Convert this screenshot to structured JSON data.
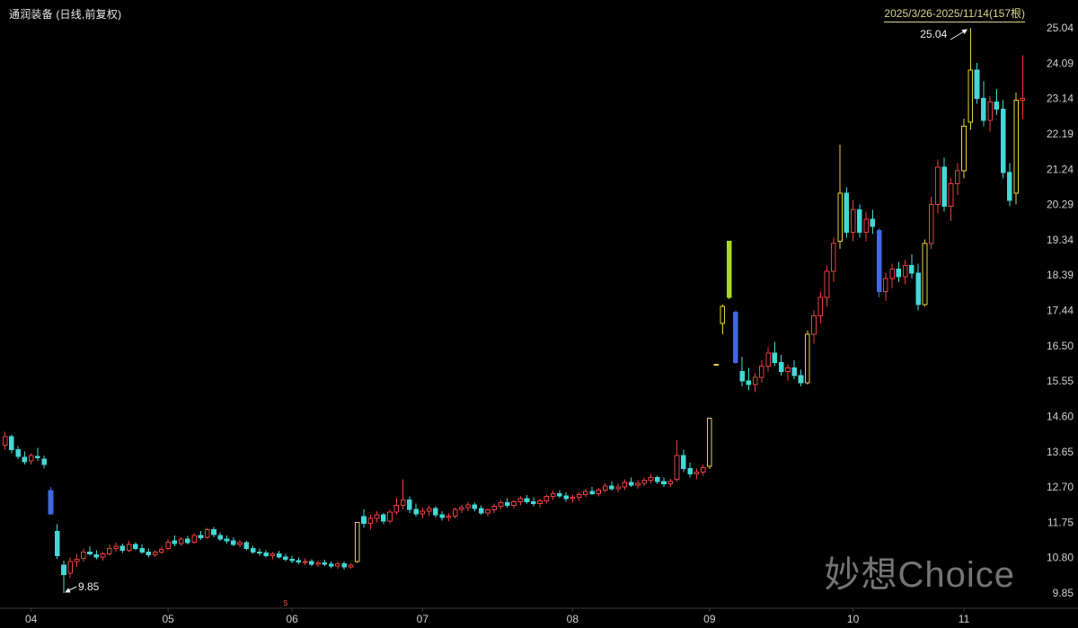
{
  "header": {
    "title": "通润装备 (日线,前复权)",
    "range_label": "2025/3/26-2025/11/14(157根)"
  },
  "watermark": "妙想Choice",
  "annotations": {
    "high_label": "25.04",
    "low_label": "9.85",
    "event_marker": {
      "label": "s",
      "date": "05/30"
    }
  },
  "colors": {
    "up": "#e8413f",
    "down": "#44d7d4",
    "strong_up": "#e7d23e",
    "strong_down": "#4169e1",
    "gap_down": "#a8d822",
    "axis_text": "#d0d0d0",
    "axis_line": "#3c3c3c",
    "annotation": "#efefef",
    "marker": "#e8413f"
  },
  "chart_data": {
    "type": "candlestick",
    "title": "通润装备",
    "period": "日线",
    "adjustment": "前复权",
    "date_range": "2025/3/26-2025/11/14",
    "bar_count": 157,
    "ylim": [
      9.85,
      25.04
    ],
    "y_ticks": [
      "25.04",
      "24.09",
      "23.14",
      "22.19",
      "21.24",
      "20.29",
      "19.34",
      "18.39",
      "17.44",
      "16.50",
      "15.55",
      "14.60",
      "13.65",
      "12.70",
      "11.75",
      "10.80",
      "9.85"
    ],
    "x_ticks": [
      "04",
      "05",
      "06",
      "07",
      "08",
      "09",
      "10",
      "11"
    ],
    "high_point": {
      "value": 25.04,
      "date": "11/04"
    },
    "low_point": {
      "value": 9.85,
      "date": "04/09"
    },
    "columns": [
      "date",
      "open",
      "high",
      "low",
      "close",
      "style"
    ],
    "styles": {
      "Y": "strong_up",
      "B": "strong_down",
      "G": "gap_down"
    },
    "candles": [
      [
        "03/26",
        13.82,
        14.18,
        13.7,
        14.05
      ],
      [
        "03/27",
        14.05,
        14.1,
        13.6,
        13.7
      ],
      [
        "03/28",
        13.7,
        13.8,
        13.45,
        13.52
      ],
      [
        "03/31",
        13.5,
        13.65,
        13.3,
        13.38
      ],
      [
        "04/01",
        13.4,
        13.6,
        13.3,
        13.55
      ],
      [
        "04/02",
        13.52,
        13.75,
        13.4,
        13.48
      ],
      [
        "04/03",
        13.45,
        13.55,
        13.2,
        13.3
      ],
      [
        "04/07",
        12.6,
        12.7,
        11.95,
        11.97,
        "B"
      ],
      [
        "04/08",
        11.5,
        11.7,
        10.77,
        10.85
      ],
      [
        "04/09",
        10.6,
        10.72,
        9.85,
        10.35
      ],
      [
        "04/10",
        10.38,
        10.8,
        10.25,
        10.7
      ],
      [
        "04/11",
        10.7,
        10.9,
        10.55,
        10.75
      ],
      [
        "04/14",
        10.78,
        11.05,
        10.7,
        10.95
      ],
      [
        "04/15",
        10.95,
        11.1,
        10.85,
        10.9
      ],
      [
        "04/16",
        10.88,
        11.0,
        10.75,
        10.82
      ],
      [
        "04/17",
        10.82,
        10.95,
        10.72,
        10.9
      ],
      [
        "04/18",
        10.9,
        11.15,
        10.85,
        11.05
      ],
      [
        "04/21",
        11.05,
        11.2,
        10.95,
        11.1
      ],
      [
        "04/22",
        11.1,
        11.18,
        10.92,
        11.0
      ],
      [
        "04/23",
        11.0,
        11.25,
        10.95,
        11.15
      ],
      [
        "04/24",
        11.15,
        11.22,
        11.0,
        11.05
      ],
      [
        "04/25",
        11.05,
        11.15,
        10.9,
        10.95
      ],
      [
        "04/28",
        10.95,
        11.05,
        10.8,
        10.88
      ],
      [
        "04/29",
        10.88,
        11.0,
        10.82,
        10.95
      ],
      [
        "04/30",
        10.95,
        11.1,
        10.9,
        11.02
      ],
      [
        "05/06",
        11.05,
        11.3,
        11.0,
        11.22
      ],
      [
        "05/07",
        11.25,
        11.4,
        11.1,
        11.18
      ],
      [
        "05/08",
        11.18,
        11.35,
        11.12,
        11.3
      ],
      [
        "05/09",
        11.3,
        11.38,
        11.15,
        11.2
      ],
      [
        "05/12",
        11.22,
        11.45,
        11.18,
        11.4
      ],
      [
        "05/13",
        11.4,
        11.52,
        11.28,
        11.33
      ],
      [
        "05/14",
        11.35,
        11.6,
        11.3,
        11.55
      ],
      [
        "05/15",
        11.55,
        11.62,
        11.35,
        11.42
      ],
      [
        "05/16",
        11.4,
        11.48,
        11.25,
        11.3
      ],
      [
        "05/19",
        11.3,
        11.4,
        11.18,
        11.25
      ],
      [
        "05/20",
        11.25,
        11.35,
        11.1,
        11.15
      ],
      [
        "05/21",
        11.15,
        11.28,
        11.08,
        11.2
      ],
      [
        "05/22",
        11.2,
        11.25,
        11.0,
        11.05
      ],
      [
        "05/23",
        11.05,
        11.12,
        10.9,
        10.95
      ],
      [
        "05/26",
        10.95,
        11.05,
        10.85,
        10.92
      ],
      [
        "05/27",
        10.92,
        11.0,
        10.8,
        10.85
      ],
      [
        "05/28",
        10.85,
        10.95,
        10.75,
        10.9
      ],
      [
        "05/29",
        10.9,
        10.98,
        10.78,
        10.82
      ],
      [
        "05/30",
        10.82,
        10.9,
        10.7,
        10.75
      ],
      [
        "06/03",
        10.75,
        10.85,
        10.65,
        10.72
      ],
      [
        "06/04",
        10.72,
        10.8,
        10.62,
        10.68
      ],
      [
        "06/05",
        10.68,
        10.78,
        10.6,
        10.7
      ],
      [
        "06/06",
        10.7,
        10.76,
        10.58,
        10.62
      ],
      [
        "06/09",
        10.62,
        10.72,
        10.55,
        10.66
      ],
      [
        "06/10",
        10.66,
        10.74,
        10.58,
        10.62
      ],
      [
        "06/11",
        10.62,
        10.7,
        10.52,
        10.58
      ],
      [
        "06/12",
        10.58,
        10.68,
        10.5,
        10.64
      ],
      [
        "06/13",
        10.64,
        10.7,
        10.48,
        10.55
      ],
      [
        "06/16",
        10.55,
        10.65,
        10.5,
        10.6
      ],
      [
        "06/17",
        10.7,
        11.75,
        10.66,
        11.75,
        "Y"
      ],
      [
        "06/18",
        11.9,
        12.1,
        11.6,
        11.72
      ],
      [
        "06/19",
        11.72,
        11.95,
        11.55,
        11.85
      ],
      [
        "06/20",
        11.85,
        12.05,
        11.75,
        11.95
      ],
      [
        "06/23",
        11.95,
        12.0,
        11.7,
        11.78
      ],
      [
        "06/24",
        11.78,
        12.1,
        11.72,
        12.02
      ],
      [
        "06/25",
        12.02,
        12.4,
        11.95,
        12.2
      ],
      [
        "06/26",
        12.2,
        12.9,
        12.1,
        12.35
      ],
      [
        "06/27",
        12.35,
        12.45,
        12.0,
        12.1
      ],
      [
        "06/30",
        12.1,
        12.25,
        11.9,
        11.98
      ],
      [
        "07/01",
        11.98,
        12.15,
        11.85,
        12.05
      ],
      [
        "07/02",
        12.05,
        12.2,
        11.92,
        12.12
      ],
      [
        "07/03",
        12.12,
        12.18,
        11.88,
        11.95
      ],
      [
        "07/04",
        11.95,
        12.05,
        11.8,
        11.88
      ],
      [
        "07/07",
        11.88,
        12.0,
        11.78,
        11.92
      ],
      [
        "07/08",
        11.92,
        12.15,
        11.85,
        12.1
      ],
      [
        "07/09",
        12.1,
        12.22,
        12.0,
        12.15
      ],
      [
        "07/10",
        12.15,
        12.3,
        12.05,
        12.22
      ],
      [
        "07/11",
        12.22,
        12.28,
        12.05,
        12.12
      ],
      [
        "07/14",
        12.12,
        12.2,
        11.95,
        12.0
      ],
      [
        "07/15",
        12.0,
        12.12,
        11.9,
        12.08
      ],
      [
        "07/16",
        12.08,
        12.25,
        12.0,
        12.18
      ],
      [
        "07/17",
        12.18,
        12.35,
        12.1,
        12.28
      ],
      [
        "07/18",
        12.28,
        12.4,
        12.15,
        12.2
      ],
      [
        "07/21",
        12.2,
        12.35,
        12.12,
        12.3
      ],
      [
        "07/22",
        12.3,
        12.45,
        12.2,
        12.38
      ],
      [
        "07/23",
        12.38,
        12.48,
        12.25,
        12.3
      ],
      [
        "07/24",
        12.3,
        12.42,
        12.18,
        12.25
      ],
      [
        "07/25",
        12.25,
        12.38,
        12.15,
        12.32
      ],
      [
        "07/28",
        12.32,
        12.5,
        12.25,
        12.45
      ],
      [
        "07/29",
        12.45,
        12.6,
        12.35,
        12.52
      ],
      [
        "07/30",
        12.52,
        12.62,
        12.4,
        12.46
      ],
      [
        "07/31",
        12.46,
        12.55,
        12.3,
        12.38
      ],
      [
        "08/01",
        12.38,
        12.5,
        12.28,
        12.42
      ],
      [
        "08/04",
        12.42,
        12.55,
        12.32,
        12.5
      ],
      [
        "08/05",
        12.5,
        12.65,
        12.42,
        12.58
      ],
      [
        "08/06",
        12.58,
        12.7,
        12.48,
        12.52
      ],
      [
        "08/07",
        12.52,
        12.68,
        12.45,
        12.62
      ],
      [
        "08/08",
        12.62,
        12.8,
        12.55,
        12.72
      ],
      [
        "08/11",
        12.72,
        12.85,
        12.6,
        12.65
      ],
      [
        "08/12",
        12.65,
        12.78,
        12.55,
        12.7
      ],
      [
        "08/13",
        12.7,
        12.9,
        12.62,
        12.82
      ],
      [
        "08/14",
        12.82,
        12.95,
        12.7,
        12.75
      ],
      [
        "08/15",
        12.75,
        12.88,
        12.65,
        12.8
      ],
      [
        "08/18",
        12.8,
        12.95,
        12.72,
        12.88
      ],
      [
        "08/19",
        12.88,
        13.05,
        12.8,
        12.95
      ],
      [
        "08/20",
        12.95,
        13.0,
        12.78,
        12.85
      ],
      [
        "08/21",
        12.85,
        12.95,
        12.7,
        12.78
      ],
      [
        "08/22",
        12.78,
        12.92,
        12.7,
        12.86
      ],
      [
        "08/25",
        12.9,
        13.95,
        12.85,
        13.55
      ],
      [
        "08/26",
        13.55,
        13.7,
        13.1,
        13.2
      ],
      [
        "08/27",
        13.2,
        13.35,
        12.95,
        13.05
      ],
      [
        "08/28",
        13.05,
        13.2,
        12.9,
        13.1
      ],
      [
        "08/29",
        13.1,
        13.3,
        13.0,
        13.22
      ],
      [
        "09/01",
        13.25,
        14.55,
        13.18,
        14.55,
        "Y"
      ],
      [
        "09/02",
        16.0,
        16.0,
        16.0,
        16.0,
        "Y"
      ],
      [
        "09/03",
        17.1,
        17.6,
        16.8,
        17.55,
        "Y"
      ],
      [
        "09/04",
        19.3,
        19.31,
        17.75,
        17.8,
        "G"
      ],
      [
        "09/05",
        17.4,
        17.45,
        16.02,
        16.05,
        "B"
      ],
      [
        "09/08",
        15.8,
        16.2,
        15.4,
        15.55
      ],
      [
        "09/09",
        15.55,
        15.9,
        15.3,
        15.45
      ],
      [
        "09/10",
        15.45,
        15.75,
        15.25,
        15.65
      ],
      [
        "09/11",
        15.65,
        16.1,
        15.5,
        15.95
      ],
      [
        "09/12",
        15.95,
        16.45,
        15.8,
        16.3
      ],
      [
        "09/15",
        16.3,
        16.6,
        15.95,
        16.05
      ],
      [
        "09/16",
        16.05,
        16.25,
        15.7,
        15.8
      ],
      [
        "09/17",
        15.8,
        16.0,
        15.55,
        15.9
      ],
      [
        "09/18",
        15.9,
        16.1,
        15.6,
        15.7
      ],
      [
        "09/19",
        15.7,
        15.85,
        15.4,
        15.5
      ],
      [
        "09/22",
        15.5,
        16.9,
        15.45,
        16.8,
        "Y"
      ],
      [
        "09/23",
        16.8,
        17.45,
        16.55,
        17.3
      ],
      [
        "09/24",
        17.3,
        17.95,
        17.1,
        17.8
      ],
      [
        "09/25",
        17.8,
        18.65,
        17.55,
        18.5
      ],
      [
        "09/26",
        18.5,
        19.4,
        18.2,
        19.25
      ],
      [
        "09/29",
        19.3,
        21.9,
        19.1,
        20.6,
        "Y"
      ],
      [
        "09/30",
        20.6,
        20.75,
        19.4,
        19.55
      ],
      [
        "10/09",
        19.55,
        20.4,
        19.3,
        20.15
      ],
      [
        "10/10",
        20.15,
        20.3,
        19.4,
        19.55
      ],
      [
        "10/13",
        19.55,
        20.1,
        19.3,
        19.9
      ],
      [
        "10/14",
        19.9,
        20.15,
        19.5,
        19.7
      ],
      [
        "10/15",
        19.6,
        19.65,
        17.8,
        17.95,
        "B"
      ],
      [
        "10/16",
        17.95,
        18.45,
        17.7,
        18.3
      ],
      [
        "10/17",
        18.3,
        18.7,
        18.05,
        18.55
      ],
      [
        "10/20",
        18.55,
        18.75,
        18.2,
        18.35
      ],
      [
        "10/21",
        18.35,
        18.8,
        18.15,
        18.65
      ],
      [
        "10/22",
        18.65,
        18.95,
        18.3,
        18.45
      ],
      [
        "10/23",
        18.45,
        18.7,
        17.45,
        17.6
      ],
      [
        "10/24",
        17.6,
        19.35,
        17.55,
        19.25,
        "Y"
      ],
      [
        "10/27",
        19.25,
        20.5,
        19.1,
        20.3
      ],
      [
        "10/28",
        20.3,
        21.5,
        20.05,
        21.3
      ],
      [
        "10/29",
        21.3,
        21.55,
        20.1,
        20.25
      ],
      [
        "10/30",
        20.25,
        21.0,
        19.85,
        20.85
      ],
      [
        "10/31",
        20.85,
        21.4,
        20.55,
        21.2
      ],
      [
        "11/03",
        21.2,
        22.6,
        21.0,
        22.4,
        "Y"
      ],
      [
        "11/04",
        22.5,
        25.04,
        22.3,
        23.9,
        "Y"
      ],
      [
        "11/05",
        23.9,
        24.1,
        23.0,
        23.15
      ],
      [
        "11/06",
        23.15,
        23.6,
        22.4,
        22.55
      ],
      [
        "11/07",
        22.55,
        23.2,
        22.25,
        23.05
      ],
      [
        "11/10",
        23.05,
        23.4,
        22.7,
        22.85
      ],
      [
        "11/11",
        22.85,
        23.1,
        21.0,
        21.15
      ],
      [
        "11/12",
        21.15,
        21.4,
        20.25,
        20.4
      ],
      [
        "11/13",
        20.6,
        23.3,
        20.3,
        23.1,
        "Y"
      ],
      [
        "11/14",
        23.1,
        24.3,
        22.6,
        23.14
      ]
    ]
  }
}
